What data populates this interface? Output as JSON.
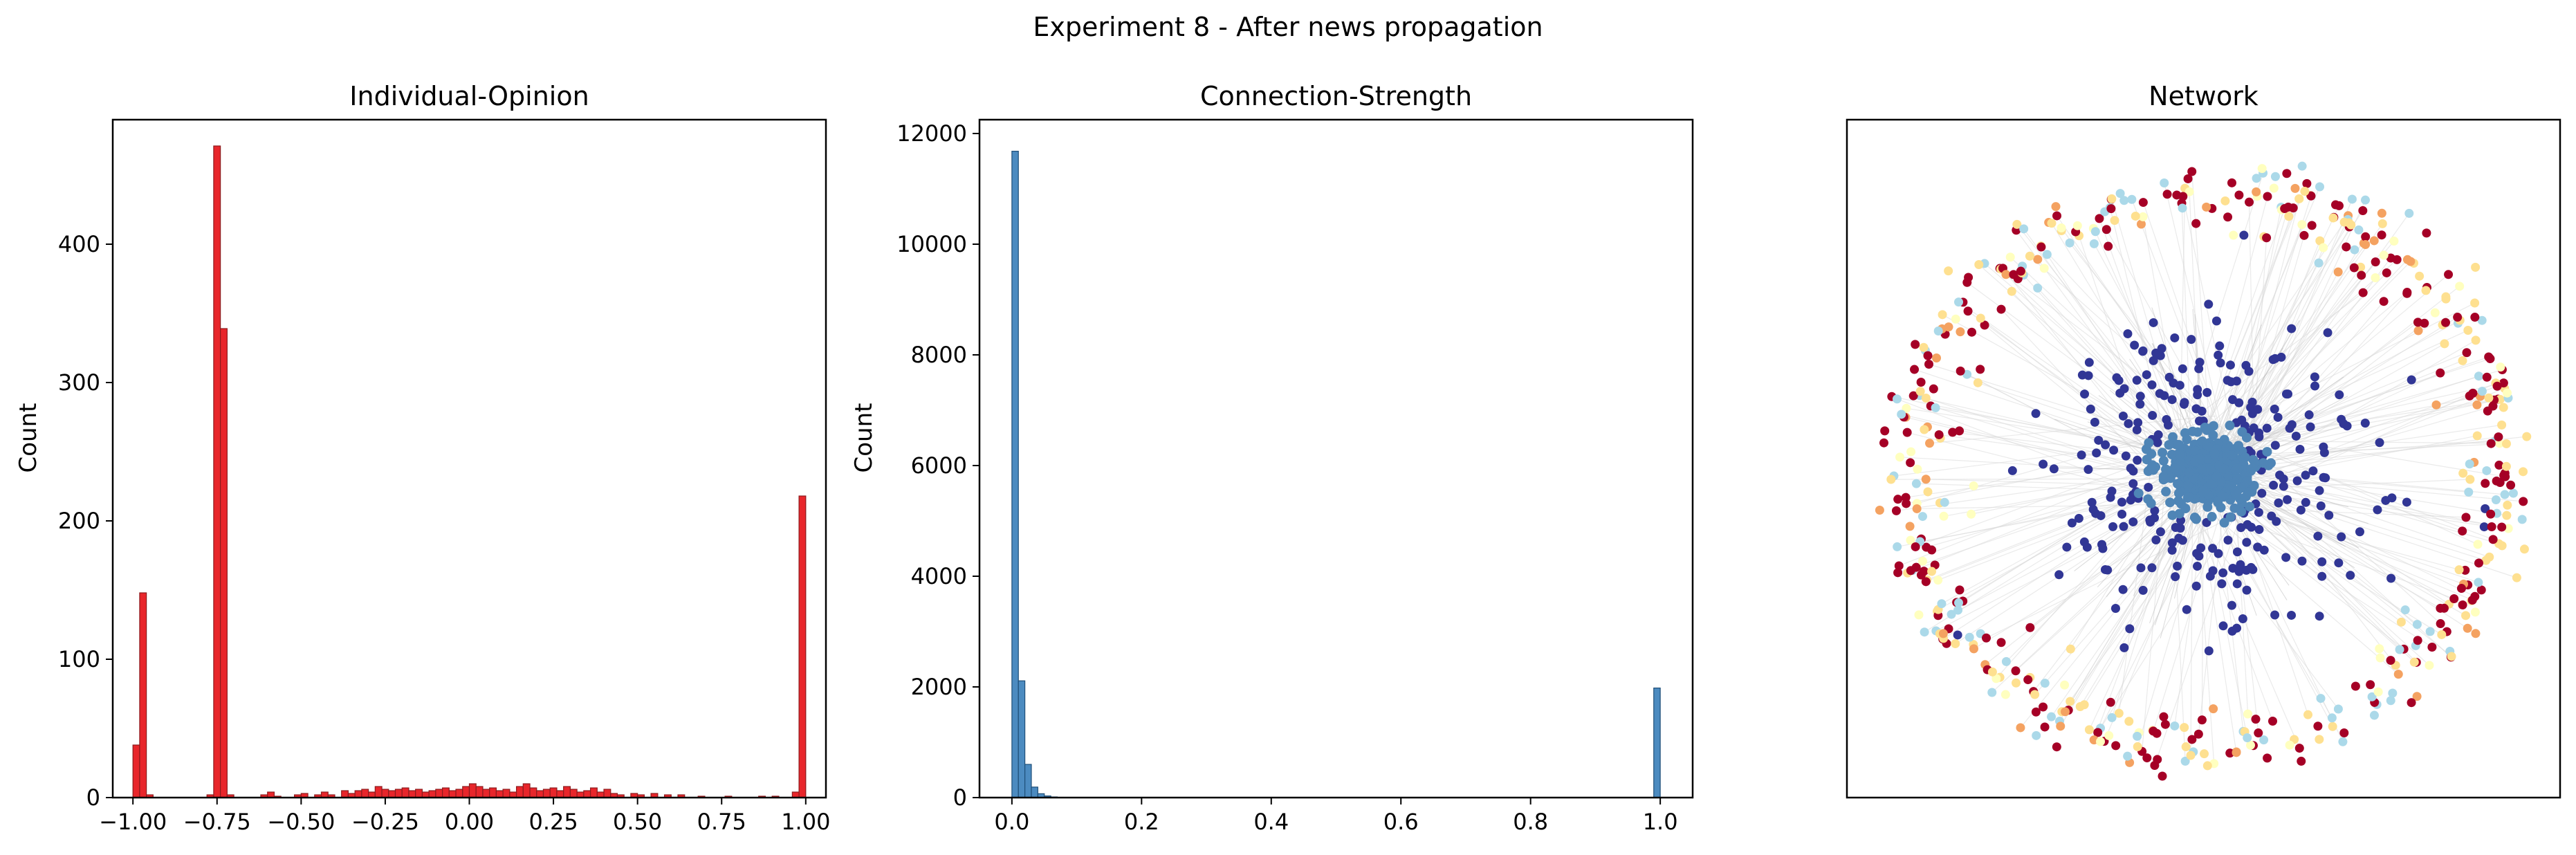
{
  "figure": {
    "title": "Experiment 8 - After news propagation"
  },
  "chart_data": [
    {
      "type": "bar",
      "subtype": "histogram",
      "title": "Individual-Opinion",
      "xlabel": "",
      "ylabel": "Count",
      "xlim": [
        -1.06,
        1.06
      ],
      "ylim": [
        0,
        490
      ],
      "xticks": [
        -1.0,
        -0.75,
        -0.5,
        -0.25,
        0.0,
        0.25,
        0.5,
        0.75,
        1.0
      ],
      "xtick_labels": [
        "−1.00",
        "−0.75",
        "−0.50",
        "−0.25",
        "0.00",
        "0.25",
        "0.50",
        "0.75",
        "1.00"
      ],
      "yticks": [
        0,
        100,
        200,
        300,
        400
      ],
      "ytick_labels": [
        "0",
        "100",
        "200",
        "300",
        "400"
      ],
      "bin_width": 0.02,
      "color": "#e8262b",
      "edge_color": "#8c1b1d",
      "bins": [
        [
          -1.0,
          38
        ],
        [
          -0.98,
          148
        ],
        [
          -0.96,
          2
        ],
        [
          -0.78,
          2
        ],
        [
          -0.76,
          471
        ],
        [
          -0.74,
          339
        ],
        [
          -0.72,
          2
        ],
        [
          -0.62,
          2
        ],
        [
          -0.6,
          4
        ],
        [
          -0.58,
          1
        ],
        [
          -0.52,
          2
        ],
        [
          -0.5,
          3
        ],
        [
          -0.46,
          2
        ],
        [
          -0.44,
          4
        ],
        [
          -0.42,
          2
        ],
        [
          -0.38,
          5
        ],
        [
          -0.36,
          3
        ],
        [
          -0.34,
          5
        ],
        [
          -0.32,
          6
        ],
        [
          -0.3,
          4
        ],
        [
          -0.28,
          8
        ],
        [
          -0.26,
          6
        ],
        [
          -0.24,
          5
        ],
        [
          -0.22,
          6
        ],
        [
          -0.2,
          7
        ],
        [
          -0.18,
          5
        ],
        [
          -0.16,
          6
        ],
        [
          -0.14,
          4
        ],
        [
          -0.12,
          5
        ],
        [
          -0.1,
          6
        ],
        [
          -0.08,
          7
        ],
        [
          -0.06,
          5
        ],
        [
          -0.04,
          6
        ],
        [
          -0.02,
          8
        ],
        [
          0.0,
          10
        ],
        [
          0.02,
          8
        ],
        [
          0.04,
          6
        ],
        [
          0.06,
          7
        ],
        [
          0.08,
          5
        ],
        [
          0.1,
          6
        ],
        [
          0.12,
          4
        ],
        [
          0.14,
          8
        ],
        [
          0.16,
          10
        ],
        [
          0.18,
          7
        ],
        [
          0.2,
          5
        ],
        [
          0.22,
          6
        ],
        [
          0.24,
          7
        ],
        [
          0.26,
          5
        ],
        [
          0.28,
          8
        ],
        [
          0.3,
          6
        ],
        [
          0.32,
          4
        ],
        [
          0.34,
          5
        ],
        [
          0.36,
          7
        ],
        [
          0.38,
          4
        ],
        [
          0.4,
          6
        ],
        [
          0.42,
          3
        ],
        [
          0.44,
          2
        ],
        [
          0.48,
          3
        ],
        [
          0.5,
          2
        ],
        [
          0.54,
          3
        ],
        [
          0.58,
          2
        ],
        [
          0.62,
          2
        ],
        [
          0.68,
          1
        ],
        [
          0.76,
          1
        ],
        [
          0.86,
          1
        ],
        [
          0.9,
          1
        ],
        [
          0.96,
          4
        ],
        [
          0.98,
          218
        ]
      ]
    },
    {
      "type": "bar",
      "subtype": "histogram",
      "title": "Connection-Strength",
      "xlabel": "",
      "ylabel": "Count",
      "xlim": [
        -0.05,
        1.05
      ],
      "ylim": [
        0,
        12250
      ],
      "xticks": [
        0.0,
        0.2,
        0.4,
        0.6,
        0.8,
        1.0
      ],
      "xtick_labels": [
        "0.0",
        "0.2",
        "0.4",
        "0.6",
        "0.8",
        "1.0"
      ],
      "yticks": [
        0,
        2000,
        4000,
        6000,
        8000,
        10000,
        12000
      ],
      "ytick_labels": [
        "0",
        "2000",
        "4000",
        "6000",
        "8000",
        "10000",
        "12000"
      ],
      "bin_width": 0.01,
      "color": "#4c8bc0",
      "edge_color": "#1f4f78",
      "bins": [
        [
          0.0,
          11680
        ],
        [
          0.01,
          2110
        ],
        [
          0.02,
          600
        ],
        [
          0.03,
          190
        ],
        [
          0.04,
          70
        ],
        [
          0.05,
          30
        ],
        [
          0.06,
          12
        ],
        [
          0.07,
          5
        ],
        [
          0.99,
          1980
        ]
      ]
    },
    {
      "type": "scatter",
      "subtype": "network",
      "title": "Network",
      "axes_visible": false,
      "colors": {
        "core": "#4f85b6",
        "inner_ring": "#313695",
        "outer_red": "#a50026",
        "outer_orange": "#f4a261",
        "outer_yellow": "#fee090",
        "outer_lightblue": "#abd9e9",
        "outer_cream": "#ffffbf",
        "edges": "#d9d9d9"
      },
      "layout": {
        "core_nodes": 420,
        "inner_ring_nodes": 260,
        "outer_ring_nodes": 520,
        "outer_ring_color_share": {
          "outer_red": 0.42,
          "outer_yellow": 0.22,
          "outer_lightblue": 0.16,
          "outer_orange": 0.1,
          "outer_cream": 0.1
        }
      }
    }
  ]
}
